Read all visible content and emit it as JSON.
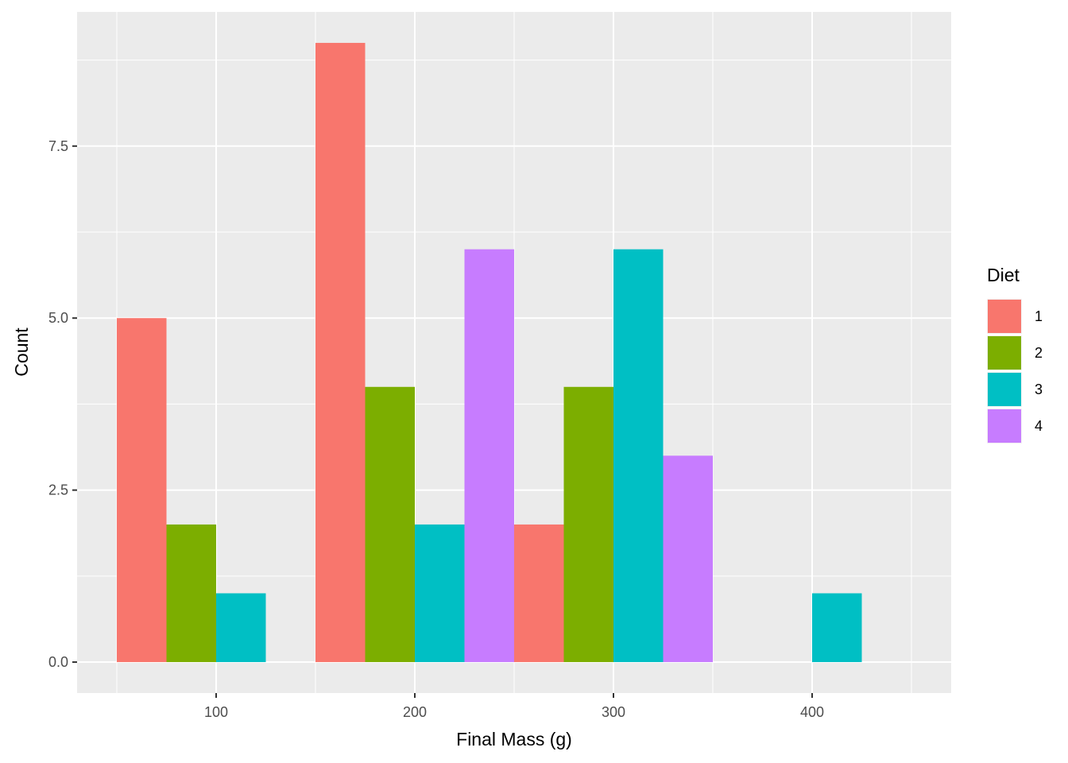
{
  "chart_data": {
    "type": "bar",
    "title": "",
    "xlabel": "Final Mass (g)",
    "ylabel": "Count",
    "bin_width": 100,
    "bins": [
      50,
      150,
      250,
      350
    ],
    "xlim": [
      30,
      470
    ],
    "ylim": [
      -0.45,
      9.45
    ],
    "x_ticks": [
      100,
      200,
      300,
      400
    ],
    "y_ticks": [
      0,
      2.5,
      5,
      7.5
    ],
    "y_tick_labels": [
      "0.0",
      "2.5",
      "5.0",
      "7.5"
    ],
    "grid": true,
    "legend": {
      "title": "Diet",
      "position": "right"
    },
    "series": [
      {
        "name": "1",
        "color": "#F8766D",
        "values": [
          5,
          9,
          2,
          0
        ]
      },
      {
        "name": "2",
        "color": "#7CAE00",
        "values": [
          2,
          4,
          4,
          0
        ]
      },
      {
        "name": "3",
        "color": "#00BFC4",
        "values": [
          1,
          2,
          6,
          1
        ]
      },
      {
        "name": "4",
        "color": "#C77CFF",
        "values": [
          0,
          6,
          3,
          0
        ]
      }
    ]
  }
}
